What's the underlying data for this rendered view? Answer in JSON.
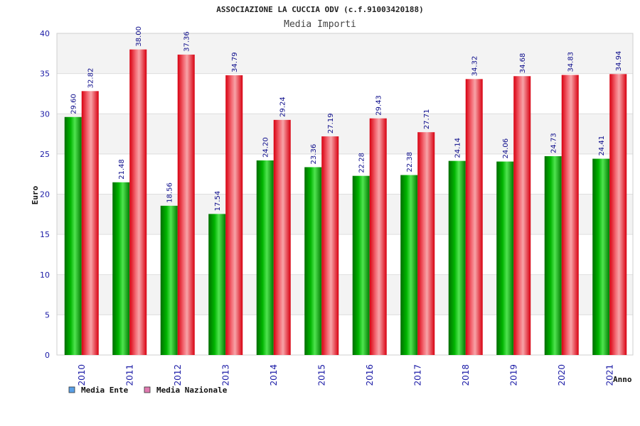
{
  "chart_data": {
    "type": "bar",
    "title": "ASSOCIAZIONE LA CUCCIA ODV (c.f.91003420188)",
    "subtitle": "Media Importi",
    "xlabel": "Anno",
    "ylabel": "Euro",
    "ylim": [
      0,
      40
    ],
    "yticks": [
      0,
      5,
      10,
      15,
      20,
      25,
      30,
      35,
      40
    ],
    "grid": true,
    "legend_position": "bottom-left",
    "categories": [
      "2010",
      "2011",
      "2012",
      "2013",
      "2014",
      "2015",
      "2016",
      "2017",
      "2018",
      "2019",
      "2020",
      "2021"
    ],
    "series": [
      {
        "name": "Media Ente",
        "values": [
          29.6,
          21.48,
          18.56,
          17.54,
          24.2,
          23.36,
          22.28,
          22.38,
          24.14,
          24.06,
          24.73,
          24.41
        ],
        "labels": [
          "29.60",
          "21.48",
          "18.56",
          "17.54",
          "24.20",
          "23.36",
          "22.28",
          "22.38",
          "24.14",
          "24.06",
          "24.73",
          "24.41"
        ],
        "color": "#00a000",
        "legend_color": "#5aa0e6"
      },
      {
        "name": "Media Nazionale",
        "values": [
          32.82,
          38.0,
          37.36,
          34.79,
          29.24,
          27.19,
          29.43,
          27.71,
          34.32,
          34.68,
          34.83,
          34.94
        ],
        "labels": [
          "32.82",
          "38.00",
          "37.36",
          "34.79",
          "29.24",
          "27.19",
          "29.43",
          "27.71",
          "34.32",
          "34.68",
          "34.83",
          "34.94"
        ],
        "color": "#e0101a",
        "legend_color": "#e07ab0"
      }
    ]
  }
}
